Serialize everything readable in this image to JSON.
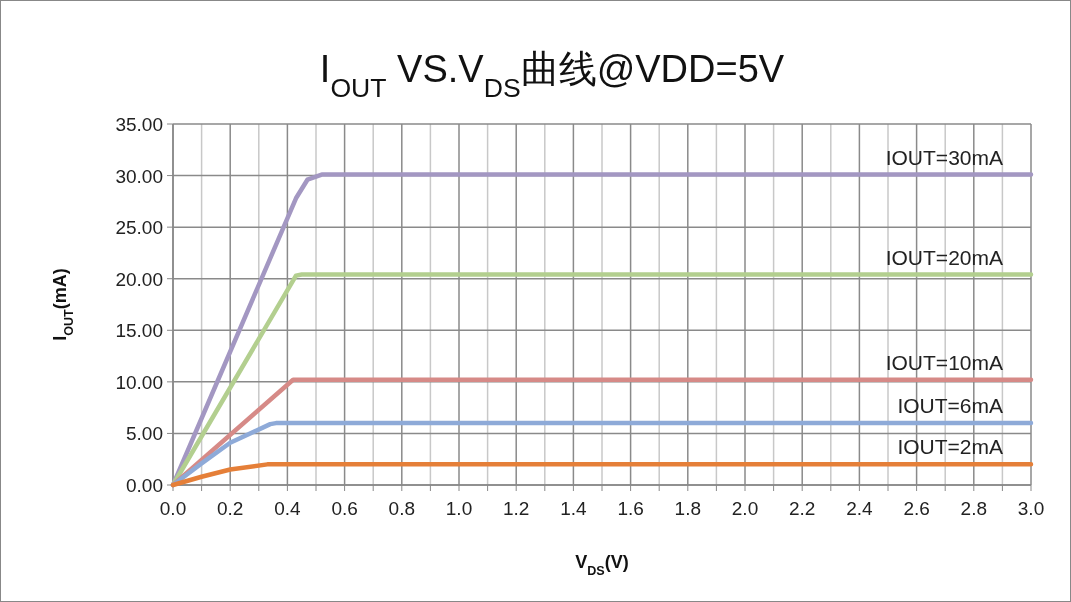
{
  "chart_data": {
    "type": "line",
    "title": "I$_{OUT}$ VS.V$_{DS}$曲线@VDD=5V",
    "xlabel": "V$_{DS}$(V)",
    "ylabel": "I$_{OUT}$(mA)",
    "xlim": [
      0,
      3
    ],
    "xticks": [
      {
        "value": 0,
        "label": "0.0"
      },
      {
        "value": 0.1,
        "label": null
      },
      {
        "value": 0.2,
        "label": "0.2"
      },
      {
        "value": 0.3,
        "label": null
      },
      {
        "value": 0.4,
        "label": "0.4"
      },
      {
        "value": 0.5,
        "label": null
      },
      {
        "value": 0.6,
        "label": "0.6"
      },
      {
        "value": 0.7,
        "label": null
      },
      {
        "value": 0.8,
        "label": "0.8"
      },
      {
        "value": 0.9,
        "label": null
      },
      {
        "value": 1.0,
        "label": "1.0"
      },
      {
        "value": 1.1,
        "label": null
      },
      {
        "value": 1.2,
        "label": "1.2"
      },
      {
        "value": 1.3,
        "label": null
      },
      {
        "value": 1.4,
        "label": "1.4"
      },
      {
        "value": 1.5,
        "label": null
      },
      {
        "value": 1.6,
        "label": "1.6"
      },
      {
        "value": 1.7,
        "label": null
      },
      {
        "value": 1.8,
        "label": "1.8"
      },
      {
        "value": 1.9,
        "label": null
      },
      {
        "value": 2.0,
        "label": "2.0"
      },
      {
        "value": 2.1,
        "label": null
      },
      {
        "value": 2.2,
        "label": "2.2"
      },
      {
        "value": 2.3,
        "label": null
      },
      {
        "value": 2.4,
        "label": "2.4"
      },
      {
        "value": 2.5,
        "label": null
      },
      {
        "value": 2.6,
        "label": "2.6"
      },
      {
        "value": 2.7,
        "label": null
      },
      {
        "value": 2.8,
        "label": "2.8"
      },
      {
        "value": 2.9,
        "label": null
      },
      {
        "value": 3.0,
        "label": "3.0"
      }
    ],
    "ylim": [
      0,
      35
    ],
    "yticks": [
      {
        "value": 0,
        "label": "0.00"
      },
      {
        "value": 5,
        "label": "5.00"
      },
      {
        "value": 10,
        "label": "10.00"
      },
      {
        "value": 15,
        "label": "15.00"
      },
      {
        "value": 20,
        "label": "20.00"
      },
      {
        "value": 25,
        "label": "25.00"
      },
      {
        "value": 30,
        "label": "30.00"
      },
      {
        "value": 35,
        "label": "35.00"
      }
    ],
    "grid": true,
    "marker": "none",
    "line_style": "solid",
    "series": [
      {
        "name": "IOUT=30mA",
        "color": "#a397c2",
        "x": [
          0,
          0.43,
          0.47,
          0.52,
          0.6,
          3.0
        ],
        "values": [
          0,
          27.8,
          29.6,
          30.1,
          30.1,
          30.1
        ]
      },
      {
        "name": "IOUT=20mA",
        "color": "#b3cf8f",
        "x": [
          0,
          0.43,
          0.45,
          3.0
        ],
        "values": [
          0,
          20.3,
          20.4,
          20.4
        ]
      },
      {
        "name": "IOUT=10mA",
        "color": "#d68a87",
        "x": [
          0,
          0.42,
          0.44,
          3.0
        ],
        "values": [
          0,
          10.2,
          10.2,
          10.2
        ]
      },
      {
        "name": "IOUT=6mA",
        "color": "#8eaad8",
        "x": [
          0,
          0.1,
          0.2,
          0.34,
          0.36,
          3.0
        ],
        "values": [
          0,
          2.1,
          4.1,
          5.9,
          6.0,
          6.0
        ]
      },
      {
        "name": "IOUT=2mA",
        "color": "#e57f38",
        "x": [
          0,
          0.1,
          0.2,
          0.33,
          3.0
        ],
        "values": [
          0,
          0.8,
          1.5,
          2.0,
          2.0
        ]
      }
    ]
  }
}
